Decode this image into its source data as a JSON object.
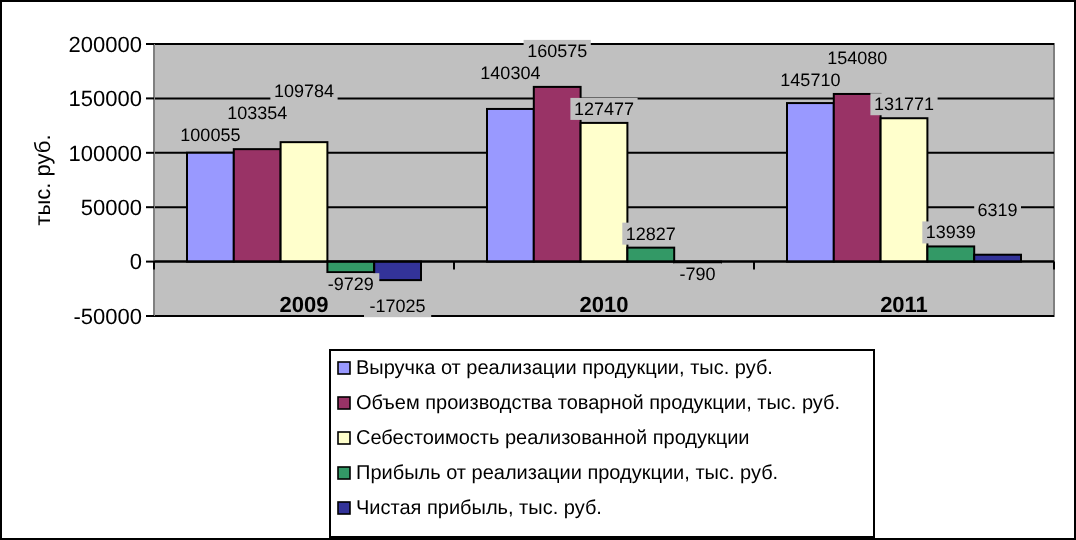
{
  "chart_data": {
    "type": "bar",
    "ylabel": "тыс. руб.",
    "categories": [
      "2009",
      "2010",
      "2011"
    ],
    "series": [
      {
        "name": "Выручка от реализации продукции, тыс. руб.",
        "color": "#9999ff",
        "values": [
          100055,
          140304,
          145710
        ]
      },
      {
        "name": "Объем производства товарной продукции, тыс. руб.",
        "color": "#993366",
        "values": [
          103354,
          160575,
          154080
        ]
      },
      {
        "name": "Себестоимость реализованной продукции",
        "color": "#ffffcc",
        "values": [
          109784,
          127477,
          131771
        ]
      },
      {
        "name": "Прибыль от реализации продукции, тыс. руб.",
        "color": "#339966",
        "values": [
          -9729,
          12827,
          13939
        ]
      },
      {
        "name": "Чистая прибыль, тыс. руб.",
        "color": "#333399",
        "values": [
          -17025,
          -790,
          6319
        ]
      }
    ],
    "ylim": [
      -50000,
      200000
    ],
    "yticks": [
      -50000,
      0,
      50000,
      100000,
      150000,
      200000
    ],
    "grid": "y",
    "data_labels": true,
    "legend": "bottom"
  }
}
